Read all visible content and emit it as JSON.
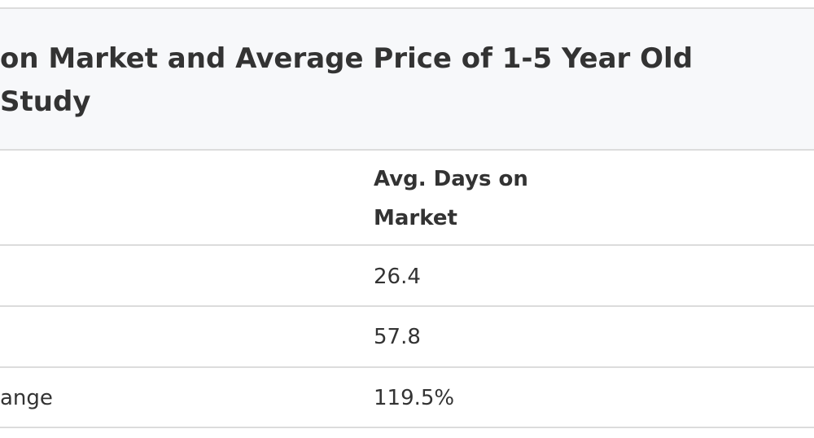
{
  "title": {
    "lines": [
      "on Market and Average Price of 1-5 Year Old",
      "Study"
    ]
  },
  "table": {
    "header": {
      "lines": [
        "Avg. Days on",
        "Market"
      ]
    },
    "rows": [
      {
        "value": "26.4"
      },
      {
        "value": "57.8"
      },
      {
        "label": "ange",
        "value": "119.5%"
      }
    ]
  }
}
